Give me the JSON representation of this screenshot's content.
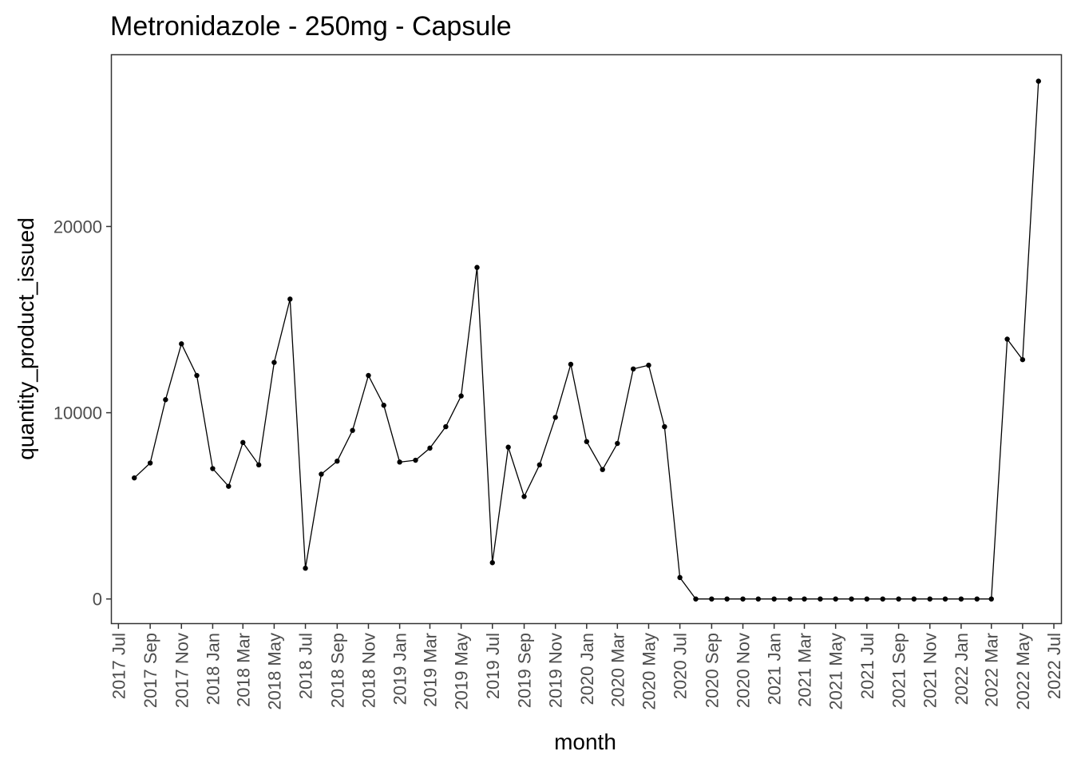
{
  "chart_data": {
    "type": "line",
    "title": "Metronidazole - 250mg - Capsule",
    "xlabel": "month",
    "ylabel": "quantity_product_issued",
    "x_tick_labels": [
      "2017 Jul",
      "2017 Sep",
      "2017 Nov",
      "2018 Jan",
      "2018 Mar",
      "2018 May",
      "2018 Jul",
      "2018 Sep",
      "2018 Nov",
      "2019 Jan",
      "2019 Mar",
      "2019 May",
      "2019 Jul",
      "2019 Sep",
      "2019 Nov",
      "2020 Jan",
      "2020 Mar",
      "2020 May",
      "2020 Jul",
      "2020 Sep",
      "2020 Nov",
      "2021 Jan",
      "2021 Mar",
      "2021 May",
      "2021 Jul",
      "2021 Sep",
      "2021 Nov",
      "2022 Jan",
      "2022 Mar",
      "2022 May",
      "2022 Jul"
    ],
    "y_ticks": [
      0,
      10000,
      20000
    ],
    "y_tick_labels": [
      "0",
      "10000",
      "20000"
    ],
    "ylim": [
      -1300,
      29200
    ],
    "xlim": [
      "2017-06-18",
      "2022-07-15"
    ],
    "grid": false,
    "color": "#000000",
    "points": [
      {
        "date": "2017-08-01",
        "value": 6500
      },
      {
        "date": "2017-09-01",
        "value": 7300
      },
      {
        "date": "2017-10-01",
        "value": 10700
      },
      {
        "date": "2017-11-01",
        "value": 13700
      },
      {
        "date": "2017-12-01",
        "value": 12000
      },
      {
        "date": "2018-01-01",
        "value": 7000
      },
      {
        "date": "2018-02-01",
        "value": 6050
      },
      {
        "date": "2018-03-01",
        "value": 8400
      },
      {
        "date": "2018-04-01",
        "value": 7200
      },
      {
        "date": "2018-05-01",
        "value": 12700
      },
      {
        "date": "2018-06-01",
        "value": 16100
      },
      {
        "date": "2018-07-01",
        "value": 1650
      },
      {
        "date": "2018-08-01",
        "value": 6700
      },
      {
        "date": "2018-09-01",
        "value": 7400
      },
      {
        "date": "2018-10-01",
        "value": 9050
      },
      {
        "date": "2018-11-01",
        "value": 12000
      },
      {
        "date": "2018-12-01",
        "value": 10400
      },
      {
        "date": "2019-01-01",
        "value": 7350
      },
      {
        "date": "2019-02-01",
        "value": 7450
      },
      {
        "date": "2019-03-01",
        "value": 8100
      },
      {
        "date": "2019-04-01",
        "value": 9250
      },
      {
        "date": "2019-05-01",
        "value": 10900
      },
      {
        "date": "2019-06-01",
        "value": 17800
      },
      {
        "date": "2019-07-01",
        "value": 1950
      },
      {
        "date": "2019-08-01",
        "value": 8150
      },
      {
        "date": "2019-09-01",
        "value": 5500
      },
      {
        "date": "2019-10-01",
        "value": 7200
      },
      {
        "date": "2019-11-01",
        "value": 9750
      },
      {
        "date": "2019-12-01",
        "value": 12600
      },
      {
        "date": "2020-01-01",
        "value": 8450
      },
      {
        "date": "2020-02-01",
        "value": 6950
      },
      {
        "date": "2020-03-01",
        "value": 8350
      },
      {
        "date": "2020-04-01",
        "value": 12350
      },
      {
        "date": "2020-05-01",
        "value": 12550
      },
      {
        "date": "2020-06-01",
        "value": 9250
      },
      {
        "date": "2020-07-01",
        "value": 1150
      },
      {
        "date": "2020-08-01",
        "value": 0
      },
      {
        "date": "2020-09-01",
        "value": 0
      },
      {
        "date": "2020-10-01",
        "value": 0
      },
      {
        "date": "2020-11-01",
        "value": 0
      },
      {
        "date": "2020-12-01",
        "value": 0
      },
      {
        "date": "2021-01-01",
        "value": 0
      },
      {
        "date": "2021-02-01",
        "value": 0
      },
      {
        "date": "2021-03-01",
        "value": 0
      },
      {
        "date": "2021-04-01",
        "value": 0
      },
      {
        "date": "2021-05-01",
        "value": 0
      },
      {
        "date": "2021-06-01",
        "value": 0
      },
      {
        "date": "2021-07-01",
        "value": 0
      },
      {
        "date": "2021-08-01",
        "value": 0
      },
      {
        "date": "2021-09-01",
        "value": 0
      },
      {
        "date": "2021-10-01",
        "value": 0
      },
      {
        "date": "2021-11-01",
        "value": 0
      },
      {
        "date": "2021-12-01",
        "value": 0
      },
      {
        "date": "2022-01-01",
        "value": 0
      },
      {
        "date": "2022-02-01",
        "value": 0
      },
      {
        "date": "2022-03-01",
        "value": 0
      },
      {
        "date": "2022-04-01",
        "value": 13950
      },
      {
        "date": "2022-05-01",
        "value": 12850
      },
      {
        "date": "2022-06-01",
        "value": 27800
      }
    ]
  }
}
